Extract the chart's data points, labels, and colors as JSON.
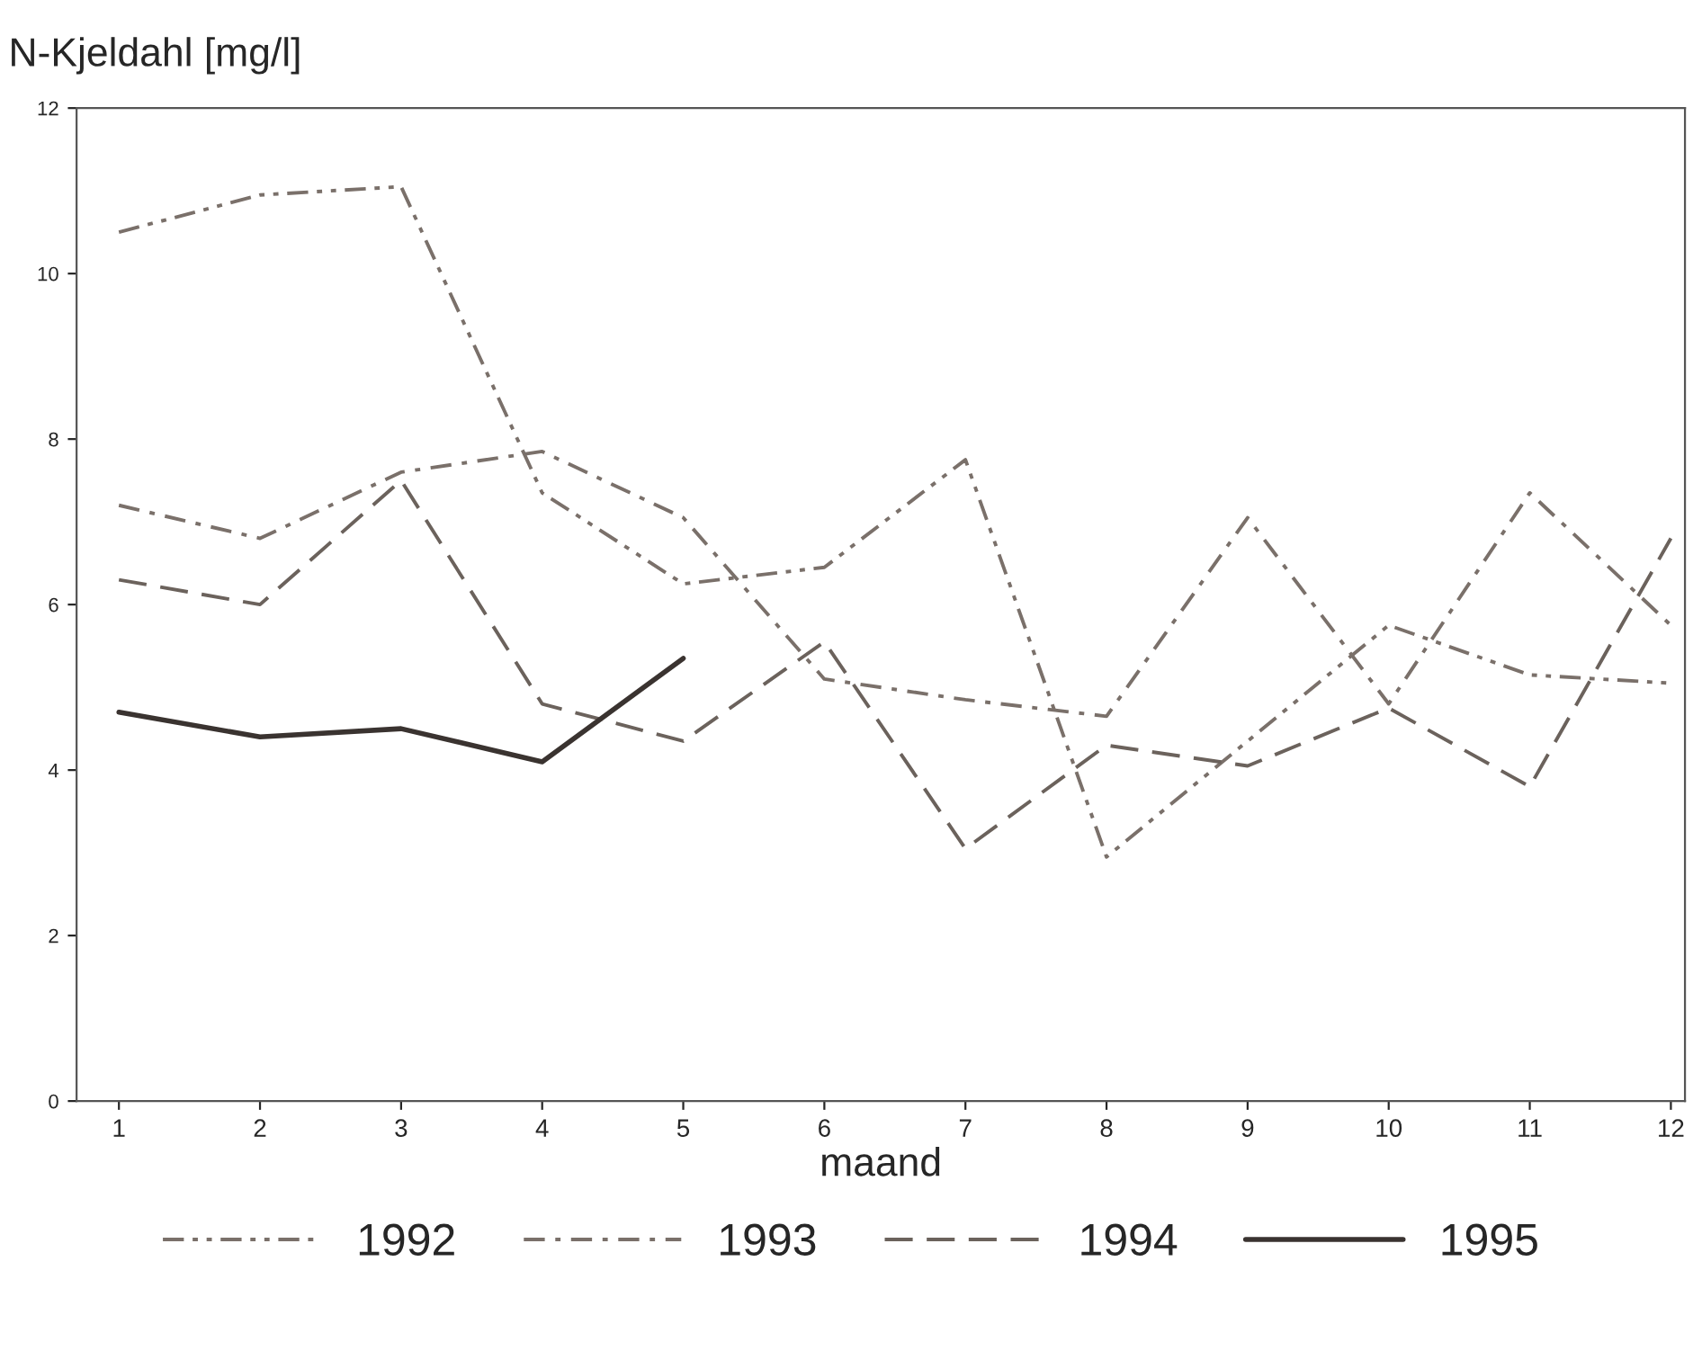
{
  "chart_data": {
    "type": "line",
    "ylabel": "N-Kjeldahl [mg/l]",
    "xlabel": "maand",
    "x": [
      1,
      2,
      3,
      4,
      5,
      6,
      7,
      8,
      9,
      10,
      11,
      12
    ],
    "series": [
      {
        "name": "1992",
        "color": "#7a706a",
        "line_style": "dashdotdot",
        "values": [
          10.5,
          10.95,
          11.05,
          7.35,
          6.25,
          6.45,
          7.75,
          2.95,
          4.35,
          5.75,
          5.15,
          5.05
        ]
      },
      {
        "name": "1993",
        "color": "#7a706a",
        "line_style": "dashdot",
        "values": [
          7.2,
          6.8,
          7.6,
          7.85,
          7.05,
          5.1,
          4.85,
          4.65,
          7.05,
          4.8,
          7.35,
          5.75
        ]
      },
      {
        "name": "1994",
        "color": "#6b625c",
        "line_style": "dashed",
        "values": [
          6.3,
          6.0,
          7.5,
          4.8,
          4.35,
          5.55,
          3.05,
          4.3,
          4.05,
          4.75,
          3.8,
          6.8
        ]
      },
      {
        "name": "1995",
        "color": "#3a3330",
        "line_style": "solid",
        "values": [
          4.7,
          4.4,
          4.5,
          4.1,
          5.35,
          null,
          null,
          null,
          null,
          null,
          null,
          null
        ]
      }
    ],
    "xlim": [
      0.7,
      12.1
    ],
    "ylim": [
      0,
      12
    ],
    "xticks": [
      1,
      2,
      3,
      4,
      5,
      6,
      7,
      8,
      9,
      10,
      11,
      12
    ],
    "yticks": [
      0,
      2,
      4,
      6,
      8,
      10,
      12
    ],
    "grid": false,
    "legend": "bottom",
    "marker": "none"
  }
}
